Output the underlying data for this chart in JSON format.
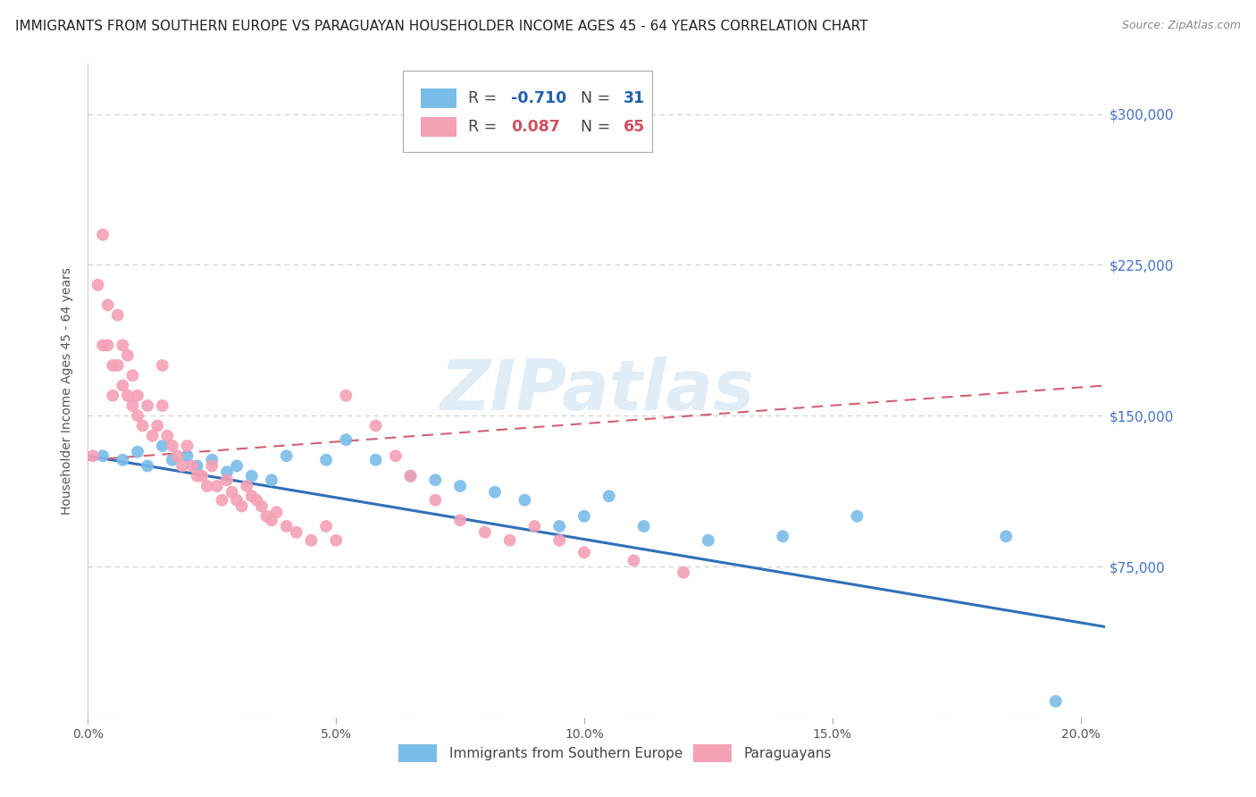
{
  "title": "IMMIGRANTS FROM SOUTHERN EUROPE VS PARAGUAYAN HOUSEHOLDER INCOME AGES 45 - 64 YEARS CORRELATION CHART",
  "source": "Source: ZipAtlas.com",
  "ylabel": "Householder Income Ages 45 - 64 years",
  "xlim": [
    0.0,
    0.205
  ],
  "ylim": [
    0,
    325000
  ],
  "yticks": [
    0,
    75000,
    150000,
    225000,
    300000
  ],
  "ytick_labels": [
    "",
    "$75,000",
    "$150,000",
    "$225,000",
    "$300,000"
  ],
  "xticks": [
    0.0,
    0.05,
    0.1,
    0.15,
    0.2
  ],
  "xtick_labels": [
    "0.0%",
    "5.0%",
    "10.0%",
    "15.0%",
    "20.0%"
  ],
  "legend_r_blue": "-0.710",
  "legend_n_blue": "31",
  "legend_r_pink": "0.087",
  "legend_n_pink": "65",
  "blue_color": "#7abce8",
  "pink_color": "#f4a0b5",
  "blue_line_color": "#3070b8",
  "pink_line_color": "#d06070",
  "watermark": "ZIPatlas",
  "blue_scatter_x": [
    0.003,
    0.007,
    0.01,
    0.012,
    0.015,
    0.017,
    0.02,
    0.022,
    0.025,
    0.028,
    0.03,
    0.033,
    0.037,
    0.04,
    0.048,
    0.052,
    0.058,
    0.065,
    0.07,
    0.075,
    0.082,
    0.088,
    0.095,
    0.1,
    0.105,
    0.112,
    0.125,
    0.14,
    0.155,
    0.185,
    0.195
  ],
  "blue_scatter_y": [
    130000,
    128000,
    132000,
    125000,
    135000,
    128000,
    130000,
    125000,
    128000,
    122000,
    125000,
    120000,
    118000,
    130000,
    128000,
    138000,
    128000,
    120000,
    118000,
    115000,
    112000,
    108000,
    95000,
    100000,
    110000,
    95000,
    88000,
    90000,
    100000,
    90000,
    8000
  ],
  "pink_scatter_x": [
    0.001,
    0.002,
    0.003,
    0.003,
    0.004,
    0.004,
    0.005,
    0.005,
    0.006,
    0.006,
    0.007,
    0.007,
    0.008,
    0.008,
    0.009,
    0.009,
    0.01,
    0.01,
    0.011,
    0.012,
    0.013,
    0.014,
    0.015,
    0.015,
    0.016,
    0.017,
    0.018,
    0.019,
    0.02,
    0.021,
    0.022,
    0.023,
    0.024,
    0.025,
    0.026,
    0.027,
    0.028,
    0.029,
    0.03,
    0.031,
    0.032,
    0.033,
    0.034,
    0.035,
    0.036,
    0.037,
    0.038,
    0.04,
    0.042,
    0.045,
    0.048,
    0.05,
    0.052,
    0.058,
    0.062,
    0.065,
    0.07,
    0.075,
    0.08,
    0.085,
    0.09,
    0.095,
    0.1,
    0.11,
    0.12
  ],
  "pink_scatter_y": [
    130000,
    215000,
    240000,
    185000,
    205000,
    185000,
    175000,
    160000,
    200000,
    175000,
    185000,
    165000,
    180000,
    160000,
    170000,
    155000,
    160000,
    150000,
    145000,
    155000,
    140000,
    145000,
    175000,
    155000,
    140000,
    135000,
    130000,
    125000,
    135000,
    125000,
    120000,
    120000,
    115000,
    125000,
    115000,
    108000,
    118000,
    112000,
    108000,
    105000,
    115000,
    110000,
    108000,
    105000,
    100000,
    98000,
    102000,
    95000,
    92000,
    88000,
    95000,
    88000,
    160000,
    145000,
    130000,
    120000,
    108000,
    98000,
    92000,
    88000,
    95000,
    88000,
    82000,
    78000,
    72000
  ],
  "background_color": "#ffffff",
  "grid_color": "#cccccc",
  "title_fontsize": 11,
  "axis_label_fontsize": 10,
  "tick_fontsize": 10,
  "blue_line_x0": 0.0,
  "blue_line_y0": 130000,
  "blue_line_x1": 0.205,
  "blue_line_y1": 45000,
  "pink_line_x0": 0.0,
  "pink_line_y0": 128000,
  "pink_line_x1": 0.205,
  "pink_line_y1": 165000
}
